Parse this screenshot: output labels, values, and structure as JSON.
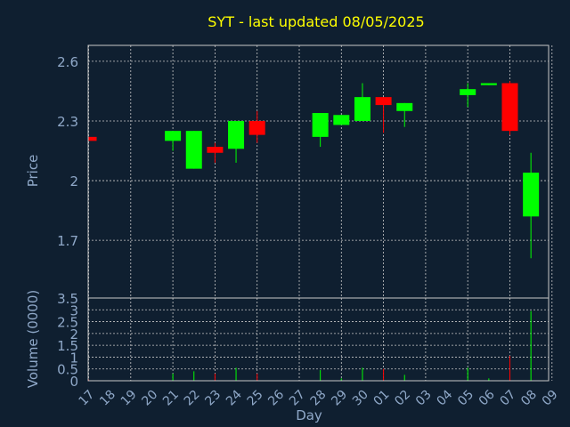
{
  "chart_data": {
    "type": "candlestick",
    "title": "SYT - last updated 08/05/2025",
    "xlabel": "Day",
    "ylabel_price": "Price",
    "ylabel_volume": "Volume (0000)",
    "grid": true,
    "x_ticks": [
      "17",
      "18",
      "19",
      "20",
      "21",
      "22",
      "23",
      "24",
      "25",
      "26",
      "27",
      "28",
      "29",
      "30",
      "01",
      "02",
      "03",
      "04",
      "05",
      "06",
      "07",
      "08",
      "09"
    ],
    "price_ylim": [
      1.41,
      2.68
    ],
    "price_ticks": [
      "1.7",
      "2",
      "2.3",
      "2.6"
    ],
    "price_tick_values": [
      1.7,
      2.0,
      2.3,
      2.6
    ],
    "volume_ylim": [
      0,
      3.5
    ],
    "volume_ticks": [
      "0",
      "0.5",
      "1",
      "1.5",
      "2",
      "2.5",
      "3",
      "3.5"
    ],
    "volume_tick_values": [
      0,
      0.5,
      1,
      1.5,
      2,
      2.5,
      3,
      3.5
    ],
    "candles": [
      {
        "day": "17",
        "open": 2.22,
        "close": 2.2,
        "high": 2.22,
        "low": 2.2,
        "volume": 0.05
      },
      {
        "day": "21",
        "open": 2.2,
        "close": 2.25,
        "high": 2.25,
        "low": 2.15,
        "volume": 0.3
      },
      {
        "day": "22",
        "open": 2.06,
        "close": 2.25,
        "high": 2.25,
        "low": 2.06,
        "volume": 0.4
      },
      {
        "day": "23",
        "open": 2.17,
        "close": 2.14,
        "high": 2.19,
        "low": 2.09,
        "volume": 0.3
      },
      {
        "day": "24",
        "open": 2.16,
        "close": 2.3,
        "high": 2.3,
        "low": 2.09,
        "volume": 0.55
      },
      {
        "day": "25",
        "open": 2.3,
        "close": 2.23,
        "high": 2.35,
        "low": 2.19,
        "volume": 0.3
      },
      {
        "day": "28",
        "open": 2.22,
        "close": 2.34,
        "high": 2.34,
        "low": 2.17,
        "volume": 0.45
      },
      {
        "day": "29",
        "open": 2.28,
        "close": 2.33,
        "high": 2.33,
        "low": 2.28,
        "volume": 0.1
      },
      {
        "day": "30",
        "open": 2.3,
        "close": 2.42,
        "high": 2.49,
        "low": 2.3,
        "volume": 0.55
      },
      {
        "day": "01",
        "open": 2.42,
        "close": 2.38,
        "high": 2.42,
        "low": 2.24,
        "volume": 0.5
      },
      {
        "day": "02",
        "open": 2.35,
        "close": 2.39,
        "high": 2.39,
        "low": 2.27,
        "volume": 0.25
      },
      {
        "day": "05",
        "open": 2.43,
        "close": 2.46,
        "high": 2.49,
        "low": 2.37,
        "volume": 0.55
      },
      {
        "day": "06",
        "open": 2.48,
        "close": 2.49,
        "high": 2.49,
        "low": 2.48,
        "volume": 0.1
      },
      {
        "day": "07",
        "open": 2.49,
        "close": 2.25,
        "high": 2.5,
        "low": 2.23,
        "volume": 1.05
      },
      {
        "day": "08",
        "open": 1.82,
        "close": 2.04,
        "high": 2.14,
        "low": 1.61,
        "volume": 2.95
      }
    ]
  },
  "colors": {
    "background": "#0f1f30",
    "plot_border": "#c8c8c8",
    "grid": "#c8c8c8",
    "title": "#ffff00",
    "axis_text": "#8fa8c8",
    "up": "#00ff00",
    "down": "#ff0000"
  }
}
